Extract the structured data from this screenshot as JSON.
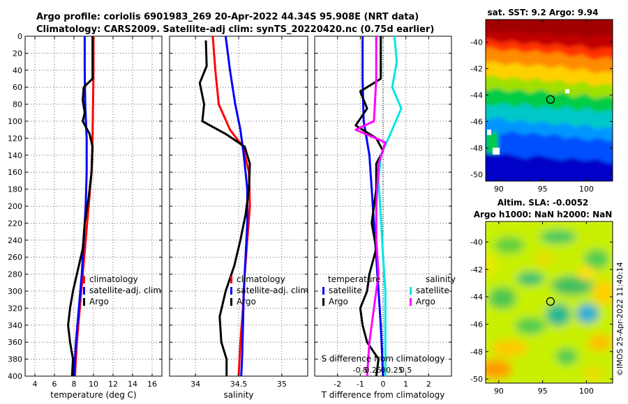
{
  "header": {
    "line1": "Argo profile: coriolis 6901983_269 20-Apr-2022 44.34S 95.908E (NRT data)",
    "line2": "Climatology: CARS2009. Satellite-adj clim: synTS_20220420.nc (0.75d earlier)"
  },
  "credit": "©IMOS 25-Apr-2022 11:40:14",
  "colors": {
    "climatology": "#ff0000",
    "satellite": "#0000ff",
    "argo": "#000000",
    "sal_satellite": "#00e5e5",
    "sal_argo": "#ff00ff"
  },
  "chart_data": [
    {
      "id": "temperature-profile",
      "type": "line",
      "xlabel": "temperature (deg C)",
      "ylim": [
        0,
        400
      ],
      "xlim": [
        3,
        17
      ],
      "xticks": [
        4,
        6,
        8,
        10,
        12,
        14,
        16
      ],
      "yticks": [
        0,
        20,
        40,
        60,
        80,
        100,
        120,
        140,
        160,
        180,
        200,
        220,
        240,
        260,
        280,
        300,
        320,
        340,
        360,
        380,
        400
      ],
      "legend": [
        "climatology",
        "satellite-adj. clim",
        "Argo"
      ],
      "series": [
        {
          "name": "climatology",
          "color": "#ff0000",
          "points": [
            [
              10.0,
              0
            ],
            [
              10.0,
              40
            ],
            [
              9.95,
              80
            ],
            [
              9.9,
              120
            ],
            [
              9.8,
              160
            ],
            [
              9.5,
              200
            ],
            [
              9.2,
              240
            ],
            [
              8.9,
              280
            ],
            [
              8.6,
              320
            ],
            [
              8.3,
              360
            ],
            [
              8.1,
              400
            ]
          ]
        },
        {
          "name": "satellite-adj. clim",
          "color": "#0000ff",
          "points": [
            [
              9.1,
              0
            ],
            [
              9.1,
              40
            ],
            [
              9.15,
              80
            ],
            [
              9.3,
              120
            ],
            [
              9.3,
              160
            ],
            [
              9.2,
              200
            ],
            [
              9.0,
              240
            ],
            [
              8.8,
              280
            ],
            [
              8.5,
              320
            ],
            [
              8.2,
              360
            ],
            [
              8.0,
              400
            ]
          ]
        },
        {
          "name": "Argo",
          "color": "#000000",
          "points": [
            [
              9.9,
              0
            ],
            [
              9.9,
              30
            ],
            [
              9.9,
              50
            ],
            [
              9.0,
              60
            ],
            [
              8.9,
              75
            ],
            [
              9.1,
              90
            ],
            [
              8.9,
              100
            ],
            [
              9.6,
              115
            ],
            [
              9.9,
              130
            ],
            [
              9.8,
              160
            ],
            [
              9.5,
              190
            ],
            [
              9.1,
              220
            ],
            [
              8.9,
              250
            ],
            [
              8.3,
              280
            ],
            [
              7.9,
              300
            ],
            [
              7.6,
              320
            ],
            [
              7.4,
              340
            ],
            [
              7.6,
              360
            ],
            [
              7.9,
              380
            ],
            [
              7.8,
              400
            ]
          ]
        }
      ]
    },
    {
      "id": "salinity-profile",
      "type": "line",
      "xlabel": "salinity",
      "ylim": [
        0,
        400
      ],
      "xlim": [
        33.7,
        35.3
      ],
      "xticks": [
        34,
        34.5,
        35
      ],
      "xtick_labels": [
        "34",
        "34.5",
        "35"
      ],
      "legend": [
        "climatology",
        "satellite-adj. clim",
        "Argo"
      ],
      "series": [
        {
          "name": "climatology",
          "color": "#ff0000",
          "points": [
            [
              34.2,
              0
            ],
            [
              34.23,
              40
            ],
            [
              34.27,
              80
            ],
            [
              34.4,
              110
            ],
            [
              34.55,
              130
            ],
            [
              34.62,
              160
            ],
            [
              34.63,
              200
            ],
            [
              34.6,
              240
            ],
            [
              34.57,
              280
            ],
            [
              34.55,
              320
            ],
            [
              34.52,
              360
            ],
            [
              34.5,
              400
            ]
          ]
        },
        {
          "name": "satellite-adj. clim",
          "color": "#0000ff",
          "points": [
            [
              34.35,
              0
            ],
            [
              34.4,
              40
            ],
            [
              34.46,
              80
            ],
            [
              34.52,
              110
            ],
            [
              34.56,
              140
            ],
            [
              34.6,
              180
            ],
            [
              34.6,
              220
            ],
            [
              34.58,
              260
            ],
            [
              34.56,
              300
            ],
            [
              34.55,
              340
            ],
            [
              34.54,
              380
            ],
            [
              34.53,
              400
            ]
          ]
        },
        {
          "name": "Argo",
          "color": "#000000",
          "points": [
            [
              34.12,
              5
            ],
            [
              34.13,
              35
            ],
            [
              34.05,
              55
            ],
            [
              34.1,
              80
            ],
            [
              34.08,
              100
            ],
            [
              34.35,
              115
            ],
            [
              34.57,
              130
            ],
            [
              34.63,
              150
            ],
            [
              34.62,
              180
            ],
            [
              34.58,
              210
            ],
            [
              34.52,
              240
            ],
            [
              34.45,
              270
            ],
            [
              34.35,
              300
            ],
            [
              34.28,
              330
            ],
            [
              34.3,
              360
            ],
            [
              34.36,
              380
            ],
            [
              34.36,
              400
            ]
          ]
        }
      ]
    },
    {
      "id": "difference-profile",
      "type": "line",
      "xlabel": "T difference from climatology",
      "top_axis_label": "S difference from climatology",
      "ylim": [
        0,
        400
      ],
      "xlim": [
        -3,
        3
      ],
      "xticks": [
        -2,
        -1,
        0,
        1,
        2
      ],
      "xtick_labels": [
        "-2",
        "-1",
        "0",
        "1",
        "2"
      ],
      "top_xticks": [
        -1,
        -0.5,
        0,
        0.5,
        1
      ],
      "top_xtick_labels": [
        "-0.5",
        "-0.25",
        "0",
        "0.25",
        "0.5"
      ],
      "legend_titles": [
        "temperature",
        "salinity"
      ],
      "legend": [
        "satellite",
        "Argo",
        "satellite",
        "Argo"
      ],
      "series": [
        {
          "name": "temperature satellite",
          "color": "#0000ff",
          "points": [
            [
              -0.9,
              0
            ],
            [
              -0.9,
              50
            ],
            [
              -0.85,
              100
            ],
            [
              -0.6,
              140
            ],
            [
              -0.5,
              180
            ],
            [
              -0.4,
              220
            ],
            [
              -0.3,
              260
            ],
            [
              -0.2,
              300
            ],
            [
              -0.1,
              340
            ],
            [
              0.0,
              400
            ]
          ]
        },
        {
          "name": "temperature Argo",
          "color": "#000000",
          "points": [
            [
              -0.1,
              0
            ],
            [
              -0.1,
              50
            ],
            [
              -1.0,
              65
            ],
            [
              -0.7,
              85
            ],
            [
              -1.2,
              105
            ],
            [
              -0.3,
              120
            ],
            [
              0.0,
              135
            ],
            [
              -0.3,
              150
            ],
            [
              -0.3,
              180
            ],
            [
              -0.5,
              220
            ],
            [
              -0.3,
              250
            ],
            [
              -0.6,
              280
            ],
            [
              -0.7,
              300
            ],
            [
              -1.0,
              320
            ],
            [
              -0.9,
              340
            ],
            [
              -0.7,
              360
            ],
            [
              -0.2,
              380
            ],
            [
              -0.3,
              400
            ]
          ]
        },
        {
          "name": "salinity satellite",
          "color": "#00e5e5",
          "points": [
            [
              0.5,
              0
            ],
            [
              0.6,
              30
            ],
            [
              0.4,
              60
            ],
            [
              0.8,
              85
            ],
            [
              0.4,
              110
            ],
            [
              -0.1,
              140
            ],
            [
              -0.2,
              170
            ],
            [
              -0.1,
              210
            ],
            [
              0.0,
              260
            ],
            [
              0.1,
              300
            ],
            [
              0.1,
              340
            ],
            [
              0.1,
              400
            ]
          ]
        },
        {
          "name": "salinity Argo",
          "color": "#ff00ff",
          "points": [
            [
              -0.3,
              0
            ],
            [
              -0.3,
              50
            ],
            [
              -0.4,
              100
            ],
            [
              -1.2,
              110
            ],
            [
              0.1,
              125
            ],
            [
              -0.2,
              150
            ],
            [
              -0.3,
              200
            ],
            [
              -0.3,
              240
            ],
            [
              -0.2,
              280
            ],
            [
              -0.4,
              320
            ],
            [
              -0.6,
              360
            ],
            [
              -0.7,
              400
            ]
          ]
        }
      ]
    },
    {
      "id": "sst-map",
      "type": "heatmap",
      "title": "sat. SST: 9.2 Argo: 9.94",
      "xlim": [
        88.5,
        103
      ],
      "ylim": [
        -50.5,
        -38.3
      ],
      "xticks": [
        90,
        95,
        100
      ],
      "yticks": [
        -40,
        -42,
        -44,
        -46,
        -48,
        -50
      ],
      "marker": [
        95.9,
        -44.34
      ]
    },
    {
      "id": "sla-map",
      "type": "heatmap",
      "title": "Altim. SLA: -0.0052",
      "subtitle": "Argo h1000: NaN h2000: NaN",
      "xlim": [
        88.5,
        103
      ],
      "ylim": [
        -50.3,
        -38.5
      ],
      "xticks": [
        90,
        95,
        100
      ],
      "yticks": [
        -40,
        -42,
        -44,
        -46,
        -48,
        -50
      ],
      "marker": [
        95.9,
        -44.34
      ]
    }
  ]
}
